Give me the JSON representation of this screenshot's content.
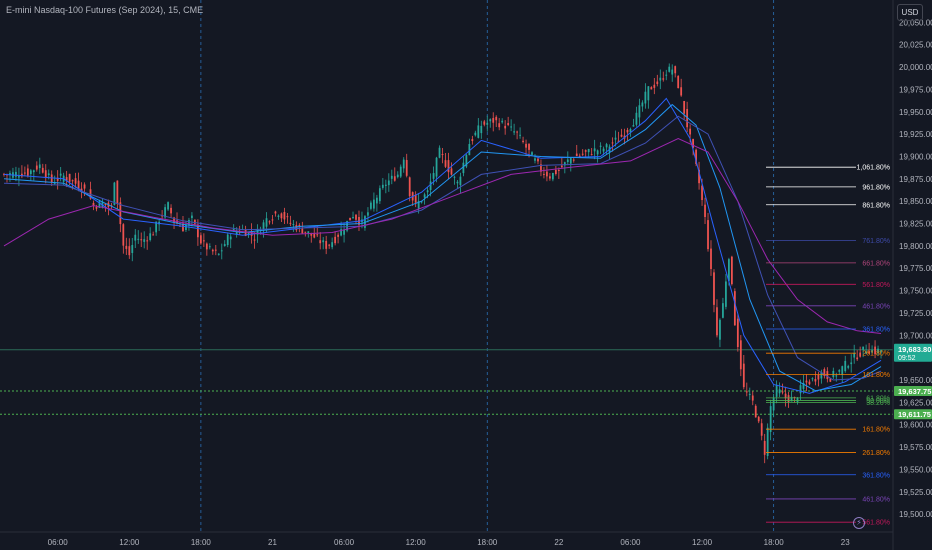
{
  "header": {
    "title": "E-mini Nasdaq-100 Futures (Sep 2024), 15, CME",
    "currency": "USD"
  },
  "chart_data": {
    "type": "line",
    "title": "E-mini Nasdaq-100 Futures (Sep 2024), 15, CME",
    "ylim": [
      19480,
      20075
    ],
    "y_ticks": [
      "20,050.00",
      "20,025.00",
      "20,000.00",
      "19,975.00",
      "19,950.00",
      "19,925.00",
      "19,900.00",
      "19,875.00",
      "19,850.00",
      "19,825.00",
      "19,800.00",
      "19,775.00",
      "19,750.00",
      "19,725.00",
      "19,700.00",
      "19,675.00",
      "19,650.00",
      "19,625.00",
      "19,600.00",
      "19,575.00",
      "19,550.00",
      "19,525.00",
      "19,500.00"
    ],
    "y_tick_values": [
      20050,
      20025,
      20000,
      19975,
      19950,
      19925,
      19900,
      19875,
      19850,
      19825,
      19800,
      19775,
      19750,
      19725,
      19700,
      19675,
      19650,
      19625,
      19600,
      19575,
      19550,
      19525,
      19500
    ],
    "x_tick_labels": [
      "06:00",
      "12:00",
      "18:00",
      "21",
      "06:00",
      "12:00",
      "18:00",
      "22",
      "06:00",
      "12:00",
      "18:00",
      "23"
    ],
    "x_tick_index": [
      18,
      42,
      66,
      90,
      114,
      138,
      162,
      186,
      210,
      234,
      258,
      282
    ],
    "session_breaks": [
      66,
      162,
      258
    ],
    "price_path": [
      [
        0,
        19880
      ],
      [
        8,
        19882
      ],
      [
        12,
        19890
      ],
      [
        16,
        19872
      ],
      [
        20,
        19878
      ],
      [
        24,
        19870
      ],
      [
        28,
        19860
      ],
      [
        30,
        19845
      ],
      [
        33,
        19848
      ],
      [
        36,
        19842
      ],
      [
        37,
        19875
      ],
      [
        38,
        19850
      ],
      [
        40,
        19800
      ],
      [
        42,
        19790
      ],
      [
        44,
        19812
      ],
      [
        46,
        19805
      ],
      [
        50,
        19815
      ],
      [
        52,
        19830
      ],
      [
        55,
        19845
      ],
      [
        57,
        19828
      ],
      [
        60,
        19820
      ],
      [
        63,
        19830
      ],
      [
        66,
        19805
      ],
      [
        69,
        19795
      ],
      [
        72,
        19790
      ],
      [
        76,
        19815
      ],
      [
        80,
        19818
      ],
      [
        84,
        19810
      ],
      [
        88,
        19830
      ],
      [
        92,
        19838
      ],
      [
        96,
        19825
      ],
      [
        100,
        19818
      ],
      [
        104,
        19810
      ],
      [
        108,
        19800
      ],
      [
        111,
        19808
      ],
      [
        114,
        19822
      ],
      [
        117,
        19835
      ],
      [
        120,
        19825
      ],
      [
        124,
        19850
      ],
      [
        128,
        19870
      ],
      [
        132,
        19880
      ],
      [
        134,
        19900
      ],
      [
        136,
        19860
      ],
      [
        138,
        19845
      ],
      [
        142,
        19860
      ],
      [
        146,
        19905
      ],
      [
        150,
        19880
      ],
      [
        152,
        19870
      ],
      [
        156,
        19915
      ],
      [
        160,
        19935
      ],
      [
        164,
        19940
      ],
      [
        168,
        19935
      ],
      [
        172,
        19925
      ],
      [
        176,
        19905
      ],
      [
        180,
        19885
      ],
      [
        183,
        19878
      ],
      [
        186,
        19885
      ],
      [
        190,
        19898
      ],
      [
        196,
        19905
      ],
      [
        202,
        19910
      ],
      [
        208,
        19925
      ],
      [
        212,
        19945
      ],
      [
        216,
        19975
      ],
      [
        220,
        19985
      ],
      [
        222,
        19995
      ],
      [
        224,
        19998
      ],
      [
        226,
        19980
      ],
      [
        228,
        19950
      ],
      [
        231,
        19905
      ],
      [
        233,
        19870
      ],
      [
        235,
        19830
      ],
      [
        237,
        19770
      ],
      [
        239,
        19700
      ],
      [
        241,
        19735
      ],
      [
        243,
        19790
      ],
      [
        245,
        19715
      ],
      [
        248,
        19640
      ],
      [
        251,
        19625
      ],
      [
        253,
        19600
      ],
      [
        255,
        19570
      ],
      [
        257,
        19620
      ],
      [
        259,
        19640
      ],
      [
        262,
        19630
      ],
      [
        265,
        19628
      ],
      [
        268,
        19645
      ],
      [
        271,
        19650
      ],
      [
        274,
        19658
      ],
      [
        277,
        19653
      ],
      [
        280,
        19660
      ],
      [
        283,
        19670
      ],
      [
        286,
        19678
      ],
      [
        289,
        19685
      ],
      [
        292,
        19682
      ],
      [
        294,
        19683.5
      ]
    ],
    "moving_averages": [
      {
        "color": "#2962ff",
        "points": [
          [
            0,
            19880
          ],
          [
            20,
            19875
          ],
          [
            40,
            19830
          ],
          [
            60,
            19822
          ],
          [
            80,
            19812
          ],
          [
            100,
            19820
          ],
          [
            120,
            19828
          ],
          [
            140,
            19860
          ],
          [
            160,
            19918
          ],
          [
            180,
            19898
          ],
          [
            200,
            19900
          ],
          [
            215,
            19940
          ],
          [
            222,
            19965
          ],
          [
            230,
            19920
          ],
          [
            238,
            19820
          ],
          [
            248,
            19700
          ],
          [
            258,
            19645
          ],
          [
            270,
            19635
          ],
          [
            282,
            19648
          ],
          [
            294,
            19672
          ]
        ]
      },
      {
        "color": "#2196f3",
        "points": [
          [
            0,
            19875
          ],
          [
            20,
            19870
          ],
          [
            40,
            19838
          ],
          [
            60,
            19824
          ],
          [
            80,
            19815
          ],
          [
            100,
            19822
          ],
          [
            120,
            19825
          ],
          [
            140,
            19850
          ],
          [
            160,
            19905
          ],
          [
            180,
            19900
          ],
          [
            200,
            19898
          ],
          [
            215,
            19930
          ],
          [
            224,
            19958
          ],
          [
            232,
            19935
          ],
          [
            240,
            19865
          ],
          [
            250,
            19740
          ],
          [
            260,
            19660
          ],
          [
            272,
            19638
          ],
          [
            284,
            19645
          ],
          [
            294,
            19665
          ]
        ]
      },
      {
        "color": "#3f51b5",
        "points": [
          [
            0,
            19870
          ],
          [
            20,
            19868
          ],
          [
            40,
            19845
          ],
          [
            60,
            19828
          ],
          [
            80,
            19818
          ],
          [
            100,
            19820
          ],
          [
            120,
            19822
          ],
          [
            140,
            19840
          ],
          [
            160,
            19880
          ],
          [
            180,
            19890
          ],
          [
            200,
            19892
          ],
          [
            215,
            19915
          ],
          [
            226,
            19945
          ],
          [
            236,
            19925
          ],
          [
            246,
            19850
          ],
          [
            256,
            19745
          ],
          [
            266,
            19675
          ],
          [
            278,
            19650
          ],
          [
            288,
            19652
          ],
          [
            294,
            19660
          ]
        ]
      },
      {
        "color": "#9c27b0",
        "points": [
          [
            0,
            19800
          ],
          [
            15,
            19830
          ],
          [
            30,
            19845
          ],
          [
            50,
            19832
          ],
          [
            70,
            19820
          ],
          [
            90,
            19812
          ],
          [
            110,
            19815
          ],
          [
            130,
            19830
          ],
          [
            150,
            19855
          ],
          [
            170,
            19880
          ],
          [
            190,
            19888
          ],
          [
            210,
            19895
          ],
          [
            226,
            19920
          ],
          [
            236,
            19905
          ],
          [
            246,
            19850
          ],
          [
            256,
            19785
          ],
          [
            266,
            19740
          ],
          [
            276,
            19715
          ],
          [
            286,
            19705
          ],
          [
            294,
            19702
          ]
        ]
      }
    ],
    "horizontal_lines": [
      {
        "y": 19683.8,
        "color": "#2b6a57",
        "style": "solid"
      },
      {
        "y": 19637.75,
        "color": "#4caf50",
        "style": "dotted"
      },
      {
        "y": 19611.75,
        "color": "#4caf50",
        "style": "dotted"
      }
    ],
    "fib_levels": [
      {
        "label": "1,061.80%",
        "y": 19888,
        "color": "#ffffff"
      },
      {
        "label": "961.80%",
        "y": 19866,
        "color": "#ffffff"
      },
      {
        "label": "861.80%",
        "y": 19846,
        "color": "#ffffff"
      },
      {
        "label": "761.80%",
        "y": 19806,
        "color": "#3d4aa8"
      },
      {
        "label": "661.80%",
        "y": 19781,
        "color": "#b0457a"
      },
      {
        "label": "561.80%",
        "y": 19757,
        "color": "#c2185b"
      },
      {
        "label": "461.80%",
        "y": 19733,
        "color": "#7b45b8"
      },
      {
        "label": "361.80%",
        "y": 19707,
        "color": "#2962ff"
      },
      {
        "label": "261.80%",
        "y": 19680,
        "color": "#f57c00"
      },
      {
        "label": "161.80%",
        "y": 19656,
        "color": "#f57c00"
      },
      {
        "label": "61.80%",
        "y": 19630,
        "color": "#4caf50"
      },
      {
        "label": "50.00%",
        "y": 19627,
        "color": "#4caf50"
      },
      {
        "label": "38.20%",
        "y": 19625,
        "color": "#4caf50"
      },
      {
        "label": "161.80%",
        "y": 19595,
        "color": "#f57c00"
      },
      {
        "label": "261.80%",
        "y": 19569,
        "color": "#f57c00"
      },
      {
        "label": "361.80%",
        "y": 19544,
        "color": "#2962ff"
      },
      {
        "label": "461.80%",
        "y": 19517,
        "color": "#7b45b8"
      },
      {
        "label": "561.80%",
        "y": 19491,
        "color": "#c2185b"
      }
    ],
    "price_labels": [
      {
        "id": "last",
        "text": "19,683.80",
        "sub": "09:52",
        "y": 19683.8,
        "bg": "#22ab94",
        "fg": "#ffffff"
      },
      {
        "id": "high-line",
        "text": "19,637.75",
        "y": 19637.75,
        "bg": "#4caf50",
        "fg": "#ffffff"
      },
      {
        "id": "low-line",
        "text": "19,611.75",
        "y": 19611.75,
        "bg": "#4caf50",
        "fg": "#ffffff"
      }
    ]
  },
  "icons": {
    "alert": "lightning-icon"
  }
}
